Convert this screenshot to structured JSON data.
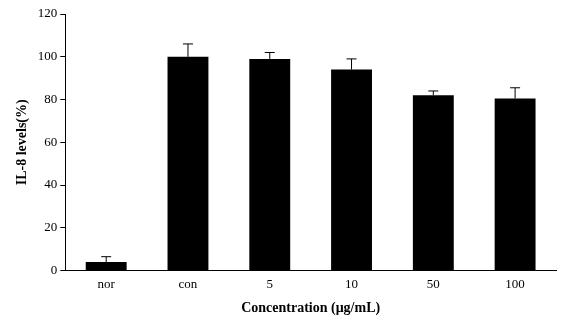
{
  "chart_data": {
    "type": "bar",
    "x_label": "Concentration (μg/mL)",
    "y_label": "IL-8 levels(%)",
    "categories": [
      "nor",
      "con",
      "5",
      "10",
      "50",
      "100"
    ],
    "values": [
      4,
      100,
      99,
      94,
      82,
      80.5
    ],
    "errors": [
      2.5,
      6,
      3,
      5,
      2,
      5
    ],
    "color": "#000000",
    "ylim": [
      0,
      120
    ],
    "yticks": [
      0,
      20,
      40,
      60,
      80,
      100,
      120
    ],
    "grid": false
  }
}
